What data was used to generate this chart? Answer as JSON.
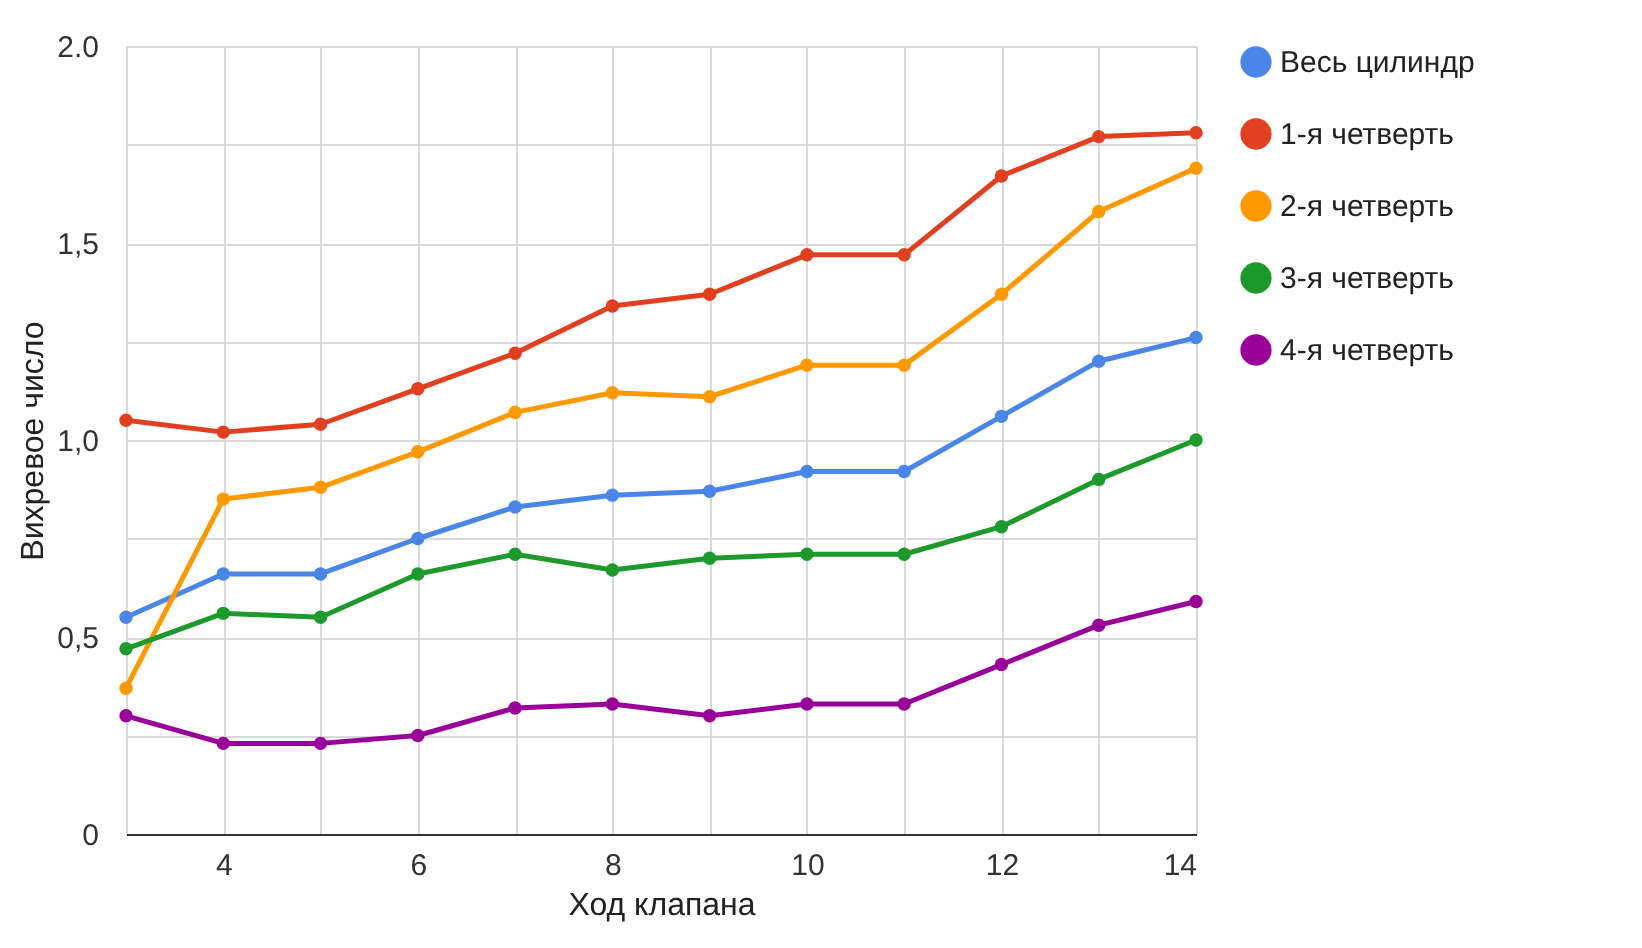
{
  "chart_data": {
    "type": "line",
    "xlabel": "Ход клапана",
    "ylabel": "Вихревое число",
    "x": [
      3,
      4,
      5,
      6,
      7,
      8,
      9,
      10,
      11,
      12,
      13,
      14
    ],
    "series": [
      {
        "name": "Весь цилиндр",
        "color": "#4a86e8",
        "values": [
          0.55,
          0.66,
          0.66,
          0.75,
          0.83,
          0.86,
          0.87,
          0.92,
          0.92,
          1.06,
          1.2,
          1.26
        ]
      },
      {
        "name": "1-я четверть",
        "color": "#e0401f",
        "values": [
          1.05,
          1.02,
          1.04,
          1.13,
          1.22,
          1.34,
          1.37,
          1.47,
          1.47,
          1.67,
          1.77,
          1.78
        ]
      },
      {
        "name": "2-я четверть",
        "color": "#ff9900",
        "values": [
          0.37,
          0.85,
          0.88,
          0.97,
          1.07,
          1.12,
          1.11,
          1.19,
          1.19,
          1.37,
          1.58,
          1.69
        ]
      },
      {
        "name": "3-я четверть",
        "color": "#1e9a2c",
        "values": [
          0.47,
          0.56,
          0.55,
          0.66,
          0.71,
          0.67,
          0.7,
          0.71,
          0.71,
          0.78,
          0.9,
          1.0
        ]
      },
      {
        "name": "4-я четверть",
        "color": "#990099",
        "values": [
          0.3,
          0.23,
          0.23,
          0.25,
          0.32,
          0.33,
          0.3,
          0.33,
          0.33,
          0.43,
          0.53,
          0.59
        ]
      }
    ],
    "xlim": [
      3,
      14
    ],
    "xticks": [
      {
        "value": 3,
        "label": null
      },
      4,
      {
        "value": 5,
        "label": null
      },
      6,
      {
        "value": 7,
        "label": null
      },
      8,
      {
        "value": 9,
        "label": null
      },
      10,
      {
        "value": 11,
        "label": null
      },
      12,
      {
        "value": 13,
        "label": null
      },
      14
    ],
    "ylim": [
      0,
      2
    ],
    "yticks": [
      0,
      {
        "value": 0.25,
        "label": null
      },
      {
        "value": 0.5,
        "label": "0,5"
      },
      {
        "value": 0.75,
        "label": null
      },
      {
        "value": 1,
        "label": "1,0"
      },
      {
        "value": 1.25,
        "label": null
      },
      {
        "value": 1.5,
        "label": "1,5"
      },
      {
        "value": 1.75,
        "label": null
      },
      {
        "value": 2,
        "label": "2.0"
      }
    ],
    "grid": true,
    "legend": "top right",
    "marker": "circle",
    "line_style": "solid"
  }
}
